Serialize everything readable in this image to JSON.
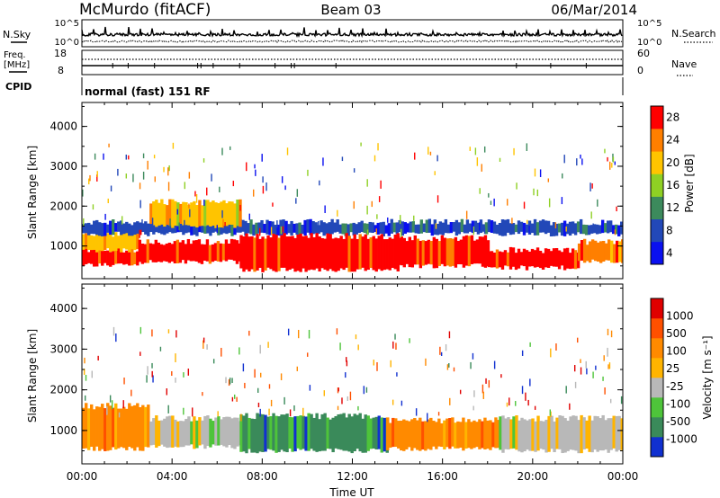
{
  "header": {
    "station": "McMurdo (fitACF)",
    "beam": "Beam 03",
    "date": "06/Mar/2014"
  },
  "noise_panel": {
    "left_label": "N.Sky",
    "right_label": "N.Search",
    "left_ticks": [
      "10^5",
      "10^0"
    ],
    "right_ticks": [
      "10^5",
      "10^0"
    ]
  },
  "freq_panel": {
    "left_label_line1": "Freq.",
    "left_label_line2": "[MHz]",
    "right_label": "Nave",
    "left_ticks": [
      "18",
      "8"
    ],
    "right_ticks": [
      "60",
      "0"
    ]
  },
  "cpid_panel": {
    "label": "CPID",
    "text": "normal (fast) 151 RF"
  },
  "chart_data": [
    {
      "type": "heatmap",
      "title": "",
      "quantity": "Power",
      "ylabel": "Slant Range [km]",
      "xlabel": "",
      "ylim": [
        180,
        4600
      ],
      "yticks": [
        "1000",
        "2000",
        "3000",
        "4000"
      ],
      "colorbar_label": "Power [dB]",
      "colorbar_ticks": [
        "4",
        "8",
        "12",
        "16",
        "20",
        "24",
        "28"
      ],
      "colorbar_colors": [
        "#0a10f0",
        "#2248b8",
        "#3c8a5c",
        "#8fd024",
        "#ffc400",
        "#ff7f00",
        "#ff0000"
      ],
      "bands": [
        {
          "t0": 0.0,
          "t1": 2.5,
          "r0": 520,
          "r1": 900,
          "class": 6
        },
        {
          "t0": 0.0,
          "t1": 2.5,
          "r0": 900,
          "r1": 1300,
          "class": 4
        },
        {
          "t0": 0.0,
          "t1": 24.0,
          "r0": 1300,
          "r1": 1600,
          "class": 1
        },
        {
          "t0": 2.5,
          "t1": 7.0,
          "r0": 600,
          "r1": 1100,
          "class": 6
        },
        {
          "t0": 3.0,
          "t1": 7.0,
          "r0": 1500,
          "r1": 2100,
          "class": 4
        },
        {
          "t0": 7.0,
          "t1": 14.0,
          "r0": 400,
          "r1": 1250,
          "class": 6
        },
        {
          "t0": 14.0,
          "t1": 18.0,
          "r0": 500,
          "r1": 1200,
          "class": 6
        },
        {
          "t0": 18.0,
          "t1": 22.0,
          "r0": 450,
          "r1": 900,
          "class": 6
        },
        {
          "t0": 22.0,
          "t1": 24.0,
          "r0": 600,
          "r1": 1100,
          "class": 5
        }
      ]
    },
    {
      "type": "heatmap",
      "title": "",
      "quantity": "Velocity",
      "ylabel": "Slant Range [km]",
      "xlabel": "Time UT",
      "ylim": [
        180,
        4600
      ],
      "yticks": [
        "1000",
        "2000",
        "3000",
        "4000"
      ],
      "xticks": [
        "00:00",
        "04:00",
        "08:00",
        "12:00",
        "16:00",
        "20:00",
        "00:00"
      ],
      "xlim_hours": [
        0,
        24
      ],
      "colorbar_label": "Velocity [m s⁻¹]",
      "colorbar_ticks": [
        "1000",
        "500",
        "100",
        "25",
        "-25",
        "-100",
        "-500",
        "-1000"
      ],
      "colorbar_colors": [
        "#1030d0",
        "#3a8a5a",
        "#4ec43a",
        "#b8b8b8",
        "#ffb400",
        "#ff8a00",
        "#ff5000",
        "#e00000"
      ],
      "bands": [
        {
          "t0": 0.0,
          "t1": 3.0,
          "r0": 550,
          "r1": 1600,
          "class": 5
        },
        {
          "t0": 3.0,
          "t1": 7.0,
          "r0": 600,
          "r1": 1300,
          "class": 3
        },
        {
          "t0": 7.0,
          "t1": 13.5,
          "r0": 500,
          "r1": 1350,
          "class": 1
        },
        {
          "t0": 13.5,
          "t1": 18.5,
          "r0": 550,
          "r1": 1250,
          "class": 5
        },
        {
          "t0": 18.5,
          "t1": 24.0,
          "r0": 500,
          "r1": 1300,
          "class": 3
        }
      ]
    }
  ]
}
